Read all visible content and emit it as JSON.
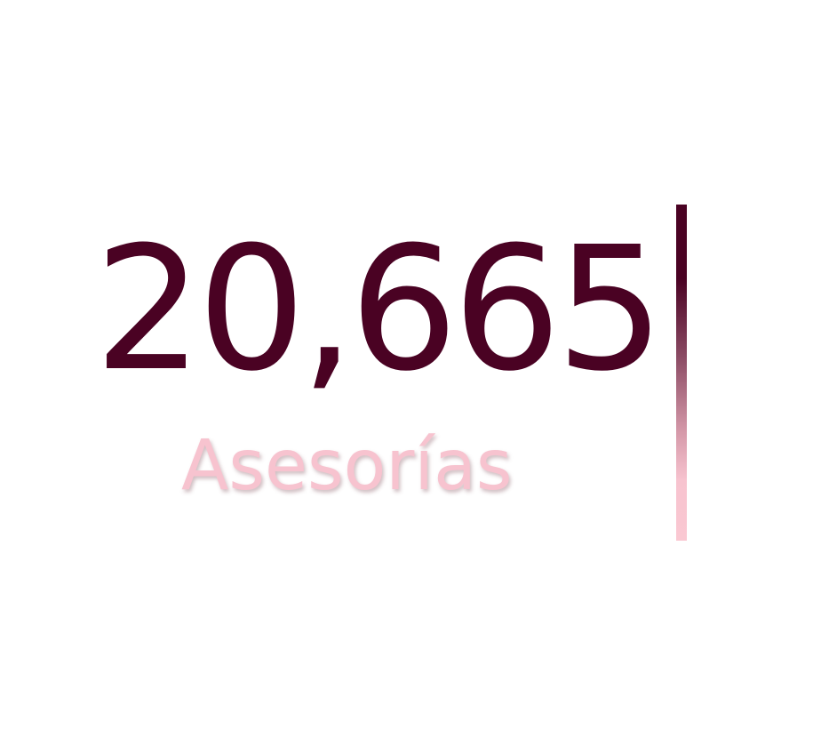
{
  "stat": {
    "value": "20,665",
    "label": "Asesorías"
  },
  "colors": {
    "value_color": "#4a0223",
    "label_color": "#f7c3cf",
    "divider_top": "#4a0223",
    "divider_bottom": "#fac8d2",
    "background": "#ffffff"
  }
}
